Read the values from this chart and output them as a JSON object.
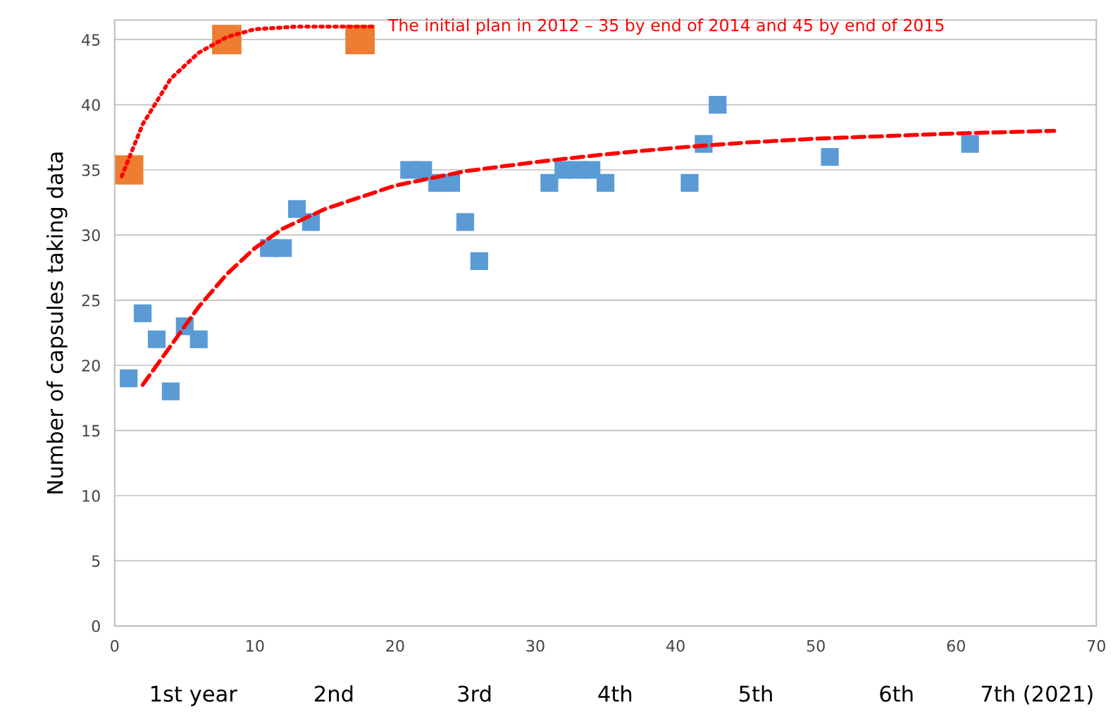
{
  "chart_data": {
    "type": "scatter",
    "ylabel": "Number of capsules taking data",
    "xlim": [
      0,
      70
    ],
    "xticks": [
      0,
      10,
      20,
      30,
      40,
      50,
      60,
      70
    ],
    "ylim": [
      0,
      46.5
    ],
    "yticks": [
      0,
      5,
      10,
      15,
      20,
      25,
      30,
      35,
      40,
      45
    ],
    "grid": "y",
    "series": [
      {
        "marker": "square",
        "color": "#5b9bd5",
        "x": [
          1,
          2,
          3,
          4,
          5,
          6,
          11,
          12,
          13,
          14,
          21,
          22,
          23,
          24,
          25,
          26,
          31,
          32,
          33,
          34,
          35,
          41,
          42,
          43,
          51,
          61
        ],
        "values": [
          19,
          24,
          22,
          18,
          23,
          22,
          29,
          29,
          32,
          31,
          35,
          35,
          34,
          34,
          31,
          28,
          34,
          35,
          35,
          35,
          34,
          34,
          37,
          40,
          36,
          37
        ]
      },
      {
        "type": "line",
        "color": "#ff0000",
        "line_style": "dashed",
        "x": [
          2,
          4,
          6,
          8,
          10,
          12,
          15,
          20,
          25,
          30,
          35,
          40,
          45,
          50,
          55,
          60,
          67
        ],
        "values": [
          18.5,
          21.5,
          24.5,
          27,
          29,
          30.5,
          32,
          33.8,
          34.9,
          35.6,
          36.2,
          36.7,
          37.1,
          37.4,
          37.6,
          37.8,
          38
        ]
      },
      {
        "type": "line",
        "color": "#ff0000",
        "line_style": "dotted",
        "name": "The initial plan in 2012 – 35 by end of 2014 and 45 by end of 2015",
        "x": [
          0.5,
          2,
          4,
          6,
          8,
          10,
          13,
          18.5
        ],
        "values": [
          34.5,
          38.5,
          42,
          44,
          45.2,
          45.8,
          46,
          46
        ]
      },
      {
        "marker": "square",
        "color": "#ed7d31",
        "x": [
          1,
          8,
          17.5
        ],
        "values": [
          35,
          45,
          45
        ]
      }
    ],
    "annotations": [
      "1st year",
      "2nd",
      "3rd",
      "4th",
      "5th",
      "6th",
      "7th (2021)"
    ]
  }
}
